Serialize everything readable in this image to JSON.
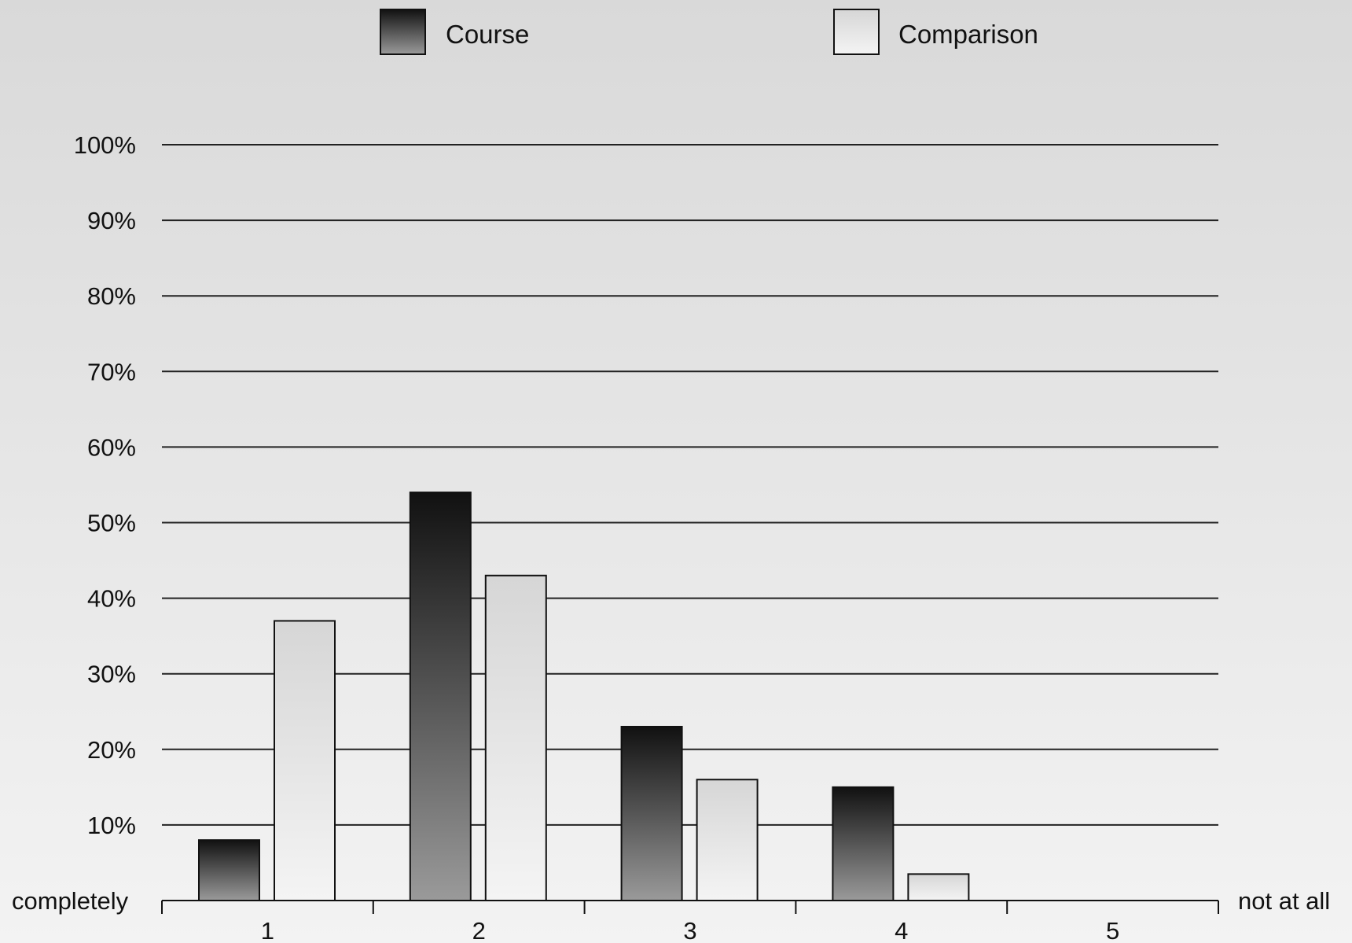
{
  "chart_data": {
    "type": "bar",
    "categories": [
      "1",
      "2",
      "3",
      "4",
      "5"
    ],
    "series": [
      {
        "name": "Course",
        "values": [
          8,
          54,
          23,
          15,
          0
        ]
      },
      {
        "name": "Comparison",
        "values": [
          37,
          43,
          16,
          3.5,
          0
        ]
      }
    ],
    "ylim": [
      0,
      100
    ],
    "yticks": [
      "10%",
      "20%",
      "30%",
      "40%",
      "50%",
      "60%",
      "70%",
      "80%",
      "90%",
      "100%"
    ],
    "xlabel_left": "completely",
    "xlabel_right": "not at all",
    "legend_position": "top",
    "grid": true,
    "colors": {
      "course_top": "#111111",
      "course_bottom": "#9a9a9a",
      "comparison_top": "#d6d6d6",
      "comparison_bottom": "#f4f4f4",
      "grid": "#222222"
    }
  }
}
